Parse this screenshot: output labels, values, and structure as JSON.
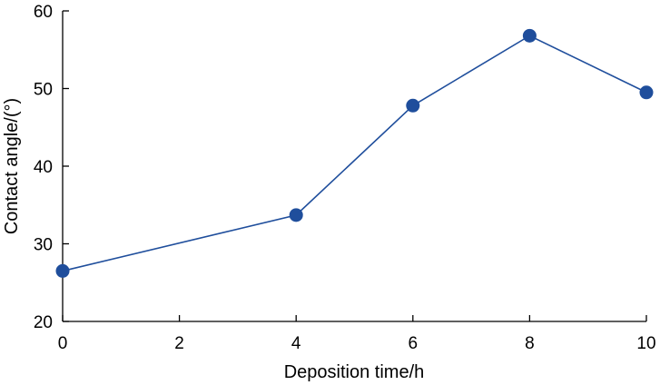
{
  "chart_data": {
    "type": "line",
    "title": "",
    "xlabel": "Deposition time/h",
    "ylabel": "Contact angle/(°)",
    "xlim": [
      0,
      10
    ],
    "ylim": [
      20,
      60
    ],
    "x_ticks": [
      "0",
      "2",
      "4",
      "6",
      "8",
      "10"
    ],
    "y_ticks": [
      "20",
      "30",
      "40",
      "50",
      "60"
    ],
    "grid": false,
    "legend": "none",
    "series": [
      {
        "x": [
          0,
          4,
          6,
          8,
          10
        ],
        "y": [
          26.5,
          33.7,
          47.8,
          56.8,
          49.5
        ],
        "color": "#1f4e9c",
        "marker": "circle"
      }
    ]
  }
}
